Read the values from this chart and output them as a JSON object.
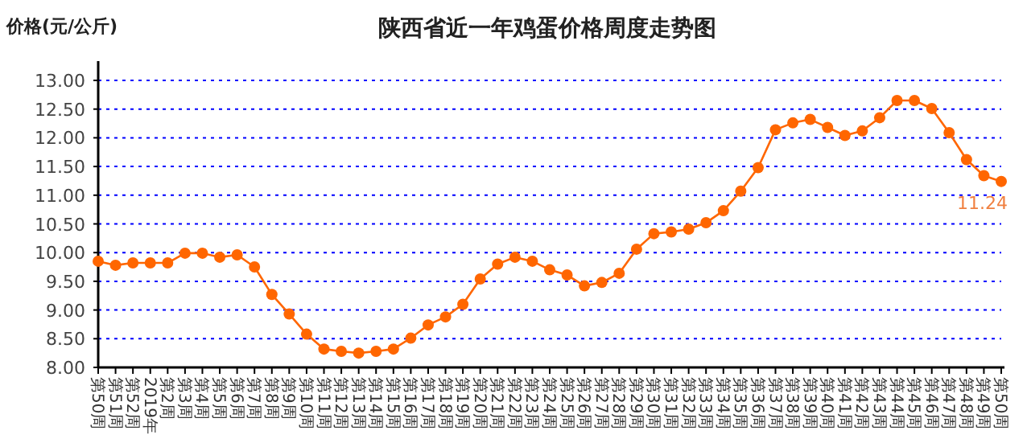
{
  "chart_data": {
    "type": "line",
    "title": "陕西省近一年鸡蛋价格周度走势图",
    "ylabel": "价格(元/公斤)",
    "categories": [
      "第50周",
      "第51周",
      "第52周",
      "2019年",
      "第2周",
      "第3周",
      "第4周",
      "第5周",
      "第6周",
      "第7周",
      "第8周",
      "第9周",
      "第10周",
      "第11周",
      "第12周",
      "第13周",
      "第14周",
      "第15周",
      "第16周",
      "第17周",
      "第18周",
      "第19周",
      "第20周",
      "第21周",
      "第22周",
      "第23周",
      "第24周",
      "第25周",
      "第26周",
      "第27周",
      "第28周",
      "第29周",
      "第30周",
      "第31周",
      "第32周",
      "第33周",
      "第34周",
      "第35周",
      "第36周",
      "第37周",
      "第38周",
      "第39周",
      "第40周",
      "第41周",
      "第42周",
      "第43周",
      "第44周",
      "第45周",
      "第46周",
      "第47周",
      "第48周",
      "第49周",
      "第50周"
    ],
    "series": [
      {
        "color": "#ff6600",
        "values": [
          9.85,
          9.78,
          9.82,
          9.82,
          9.82,
          9.99,
          9.99,
          9.92,
          9.96,
          9.75,
          9.27,
          8.93,
          8.58,
          8.32,
          8.28,
          8.25,
          8.28,
          8.32,
          8.51,
          8.74,
          8.88,
          9.1,
          9.54,
          9.8,
          9.92,
          9.85,
          9.7,
          9.61,
          9.42,
          9.48,
          9.64,
          10.06,
          10.33,
          10.36,
          10.41,
          10.52,
          10.73,
          11.07,
          11.48,
          12.14,
          12.26,
          12.32,
          12.18,
          12.04,
          12.12,
          12.35,
          12.65,
          12.65,
          12.51,
          12.09,
          11.62,
          11.34,
          11.24
        ],
        "value_labels": [
          null,
          null,
          null,
          null,
          null,
          null,
          null,
          null,
          null,
          null,
          null,
          null,
          null,
          null,
          null,
          null,
          null,
          null,
          null,
          null,
          null,
          null,
          null,
          null,
          null,
          null,
          null,
          null,
          null,
          null,
          null,
          null,
          null,
          null,
          null,
          null,
          null,
          null,
          null,
          null,
          null,
          null,
          null,
          null,
          null,
          null,
          null,
          null,
          null,
          null,
          null,
          null,
          "11.24"
        ]
      }
    ],
    "ylim": [
      8,
      13
    ],
    "yticks": [
      {
        "value": 8,
        "label": "8.00"
      },
      {
        "value": 8.5,
        "label": "8.50"
      },
      {
        "value": 9,
        "label": "9.00"
      },
      {
        "value": 9.5,
        "label": "9.50"
      },
      {
        "value": 10,
        "label": "10.00"
      },
      {
        "value": 10.5,
        "label": "10.50"
      },
      {
        "value": 11,
        "label": "11.00"
      },
      {
        "value": 11.5,
        "label": "11.50"
      },
      {
        "value": 12,
        "label": "12.00"
      },
      {
        "value": 12.5,
        "label": "12.50"
      },
      {
        "value": 13,
        "label": "13.00"
      }
    ],
    "grid": "y",
    "marker": "circle"
  }
}
